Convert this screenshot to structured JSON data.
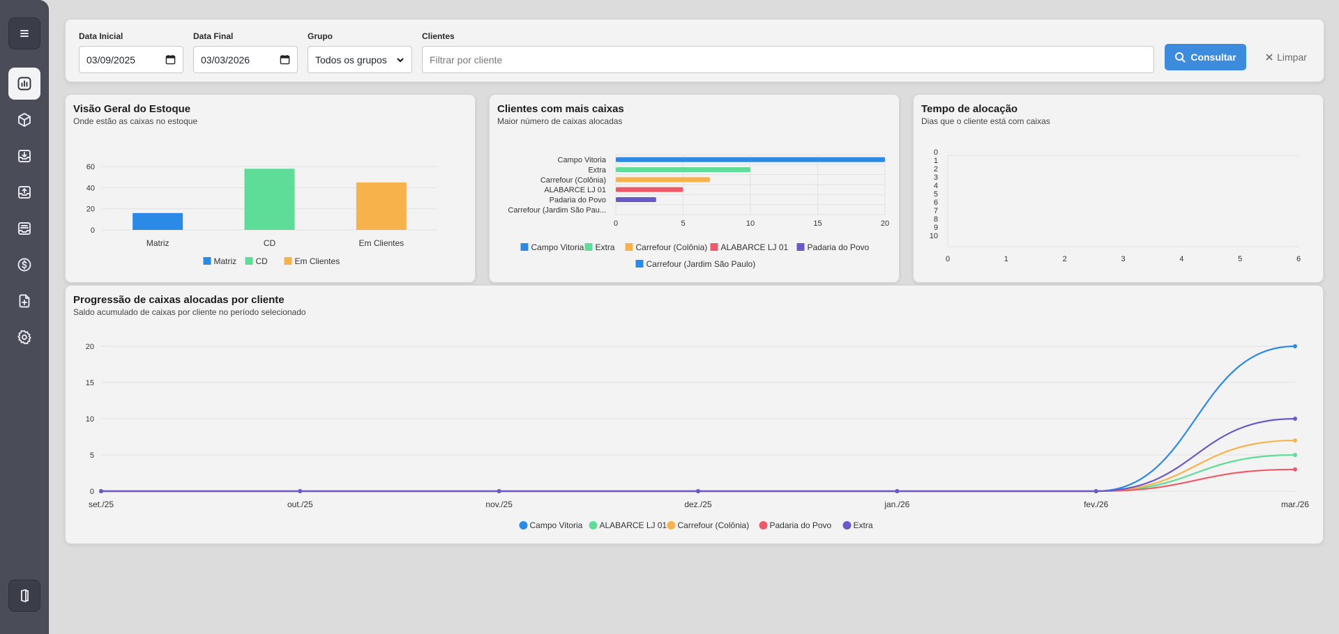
{
  "sidebar": {
    "items": [
      {
        "name": "menu-icon"
      },
      {
        "name": "dashboard-icon"
      },
      {
        "name": "box-icon"
      },
      {
        "name": "inbox-download-icon"
      },
      {
        "name": "inbox-upload-icon"
      },
      {
        "name": "tray-stack-icon"
      },
      {
        "name": "dollar-icon"
      },
      {
        "name": "file-plus-icon"
      },
      {
        "name": "gear-icon"
      },
      {
        "name": "logout-icon"
      }
    ]
  },
  "filters": {
    "data_inicial": {
      "label": "Data Inicial",
      "value": "03/09/2025"
    },
    "data_final": {
      "label": "Data Final",
      "value": "03/03/2026"
    },
    "grupo": {
      "label": "Grupo",
      "value": "Todos os grupos"
    },
    "clientes": {
      "label": "Clientes",
      "placeholder": "Filtrar por cliente"
    },
    "consultar_label": "Consultar",
    "limpar_label": "Limpar"
  },
  "colors": {
    "blue": "#2b8ae6",
    "green": "#5ddd98",
    "orange": "#f8b24c",
    "red": "#ef5a68",
    "purple": "#6a5ac9",
    "accent": "#3d8bdc"
  },
  "cards": {
    "estoque": {
      "title": "Visão Geral do Estoque",
      "subtitle": "Onde estão as caixas no estoque"
    },
    "clientes": {
      "title": "Clientes com mais caixas",
      "subtitle": "Maior número de caixas alocadas"
    },
    "tempo": {
      "title": "Tempo de alocação",
      "subtitle": "Dias que o cliente está com caixas"
    },
    "progressao": {
      "title": "Progressão de caixas alocadas por cliente",
      "subtitle": "Saldo acumulado de caixas por cliente no período selecionado"
    }
  },
  "chart_data": [
    {
      "type": "bar",
      "categories": [
        "Matriz",
        "CD",
        "Em Clientes"
      ],
      "values": [
        16,
        58,
        45
      ],
      "colors": [
        "#2b8ae6",
        "#5ddd98",
        "#f8b24c"
      ],
      "yticks": [
        0,
        20,
        40,
        60
      ],
      "ylim": [
        0,
        70
      ],
      "legend": [
        "Matriz",
        "CD",
        "Em Clientes"
      ],
      "grid": true
    },
    {
      "type": "bar",
      "orientation": "horizontal",
      "categories": [
        "Campo Vitoria",
        "Extra",
        "Carrefour (Colônia)",
        "ALABARCE LJ 01",
        "Padaria do Povo",
        "Carrefour (Jardim São Pau..."
      ],
      "values": [
        20,
        10,
        7,
        5,
        3,
        0
      ],
      "colors": [
        "#2b8ae6",
        "#5ddd98",
        "#f8b24c",
        "#ef5a68",
        "#6a5ac9",
        "#2b8ae6"
      ],
      "xticks": [
        0,
        5,
        10,
        15,
        20
      ],
      "xlim": [
        0,
        20
      ],
      "legend": [
        "Campo Vitoria",
        "Extra",
        "Carrefour (Colônia)",
        "ALABARCE LJ 01",
        "Padaria do Povo",
        "Carrefour (Jardim São Paulo)"
      ],
      "grid": true
    },
    {
      "type": "scatter",
      "yticks": [
        "0",
        "1",
        "2",
        "3",
        "4",
        "5",
        "6",
        "7",
        "8",
        "9",
        "10"
      ],
      "xticks": [
        0,
        1,
        2,
        3,
        4,
        5,
        6
      ],
      "xlim": [
        0,
        6
      ],
      "ylim": [
        0,
        10
      ],
      "series": [],
      "grid": true
    },
    {
      "type": "line",
      "x": [
        "set./25",
        "out./25",
        "nov./25",
        "dez./25",
        "jan./26",
        "fev./26",
        "mar./26"
      ],
      "yticks": [
        0,
        5,
        10,
        15,
        20
      ],
      "ylim": [
        0,
        20
      ],
      "series": [
        {
          "name": "Campo Vitoria",
          "color": "#2b8ae6",
          "values": [
            0,
            0,
            0,
            0,
            0,
            0,
            20
          ]
        },
        {
          "name": "ALABARCE LJ 01",
          "color": "#5ddd98",
          "values": [
            0,
            0,
            0,
            0,
            0,
            0,
            5
          ]
        },
        {
          "name": "Carrefour (Colônia)",
          "color": "#f8b24c",
          "values": [
            0,
            0,
            0,
            0,
            0,
            0,
            7
          ]
        },
        {
          "name": "Padaria do Povo",
          "color": "#ef5a68",
          "values": [
            0,
            0,
            0,
            0,
            0,
            0,
            3
          ]
        },
        {
          "name": "Extra",
          "color": "#6a5ac9",
          "values": [
            0,
            0,
            0,
            0,
            0,
            0,
            10
          ]
        }
      ],
      "grid": true
    }
  ]
}
